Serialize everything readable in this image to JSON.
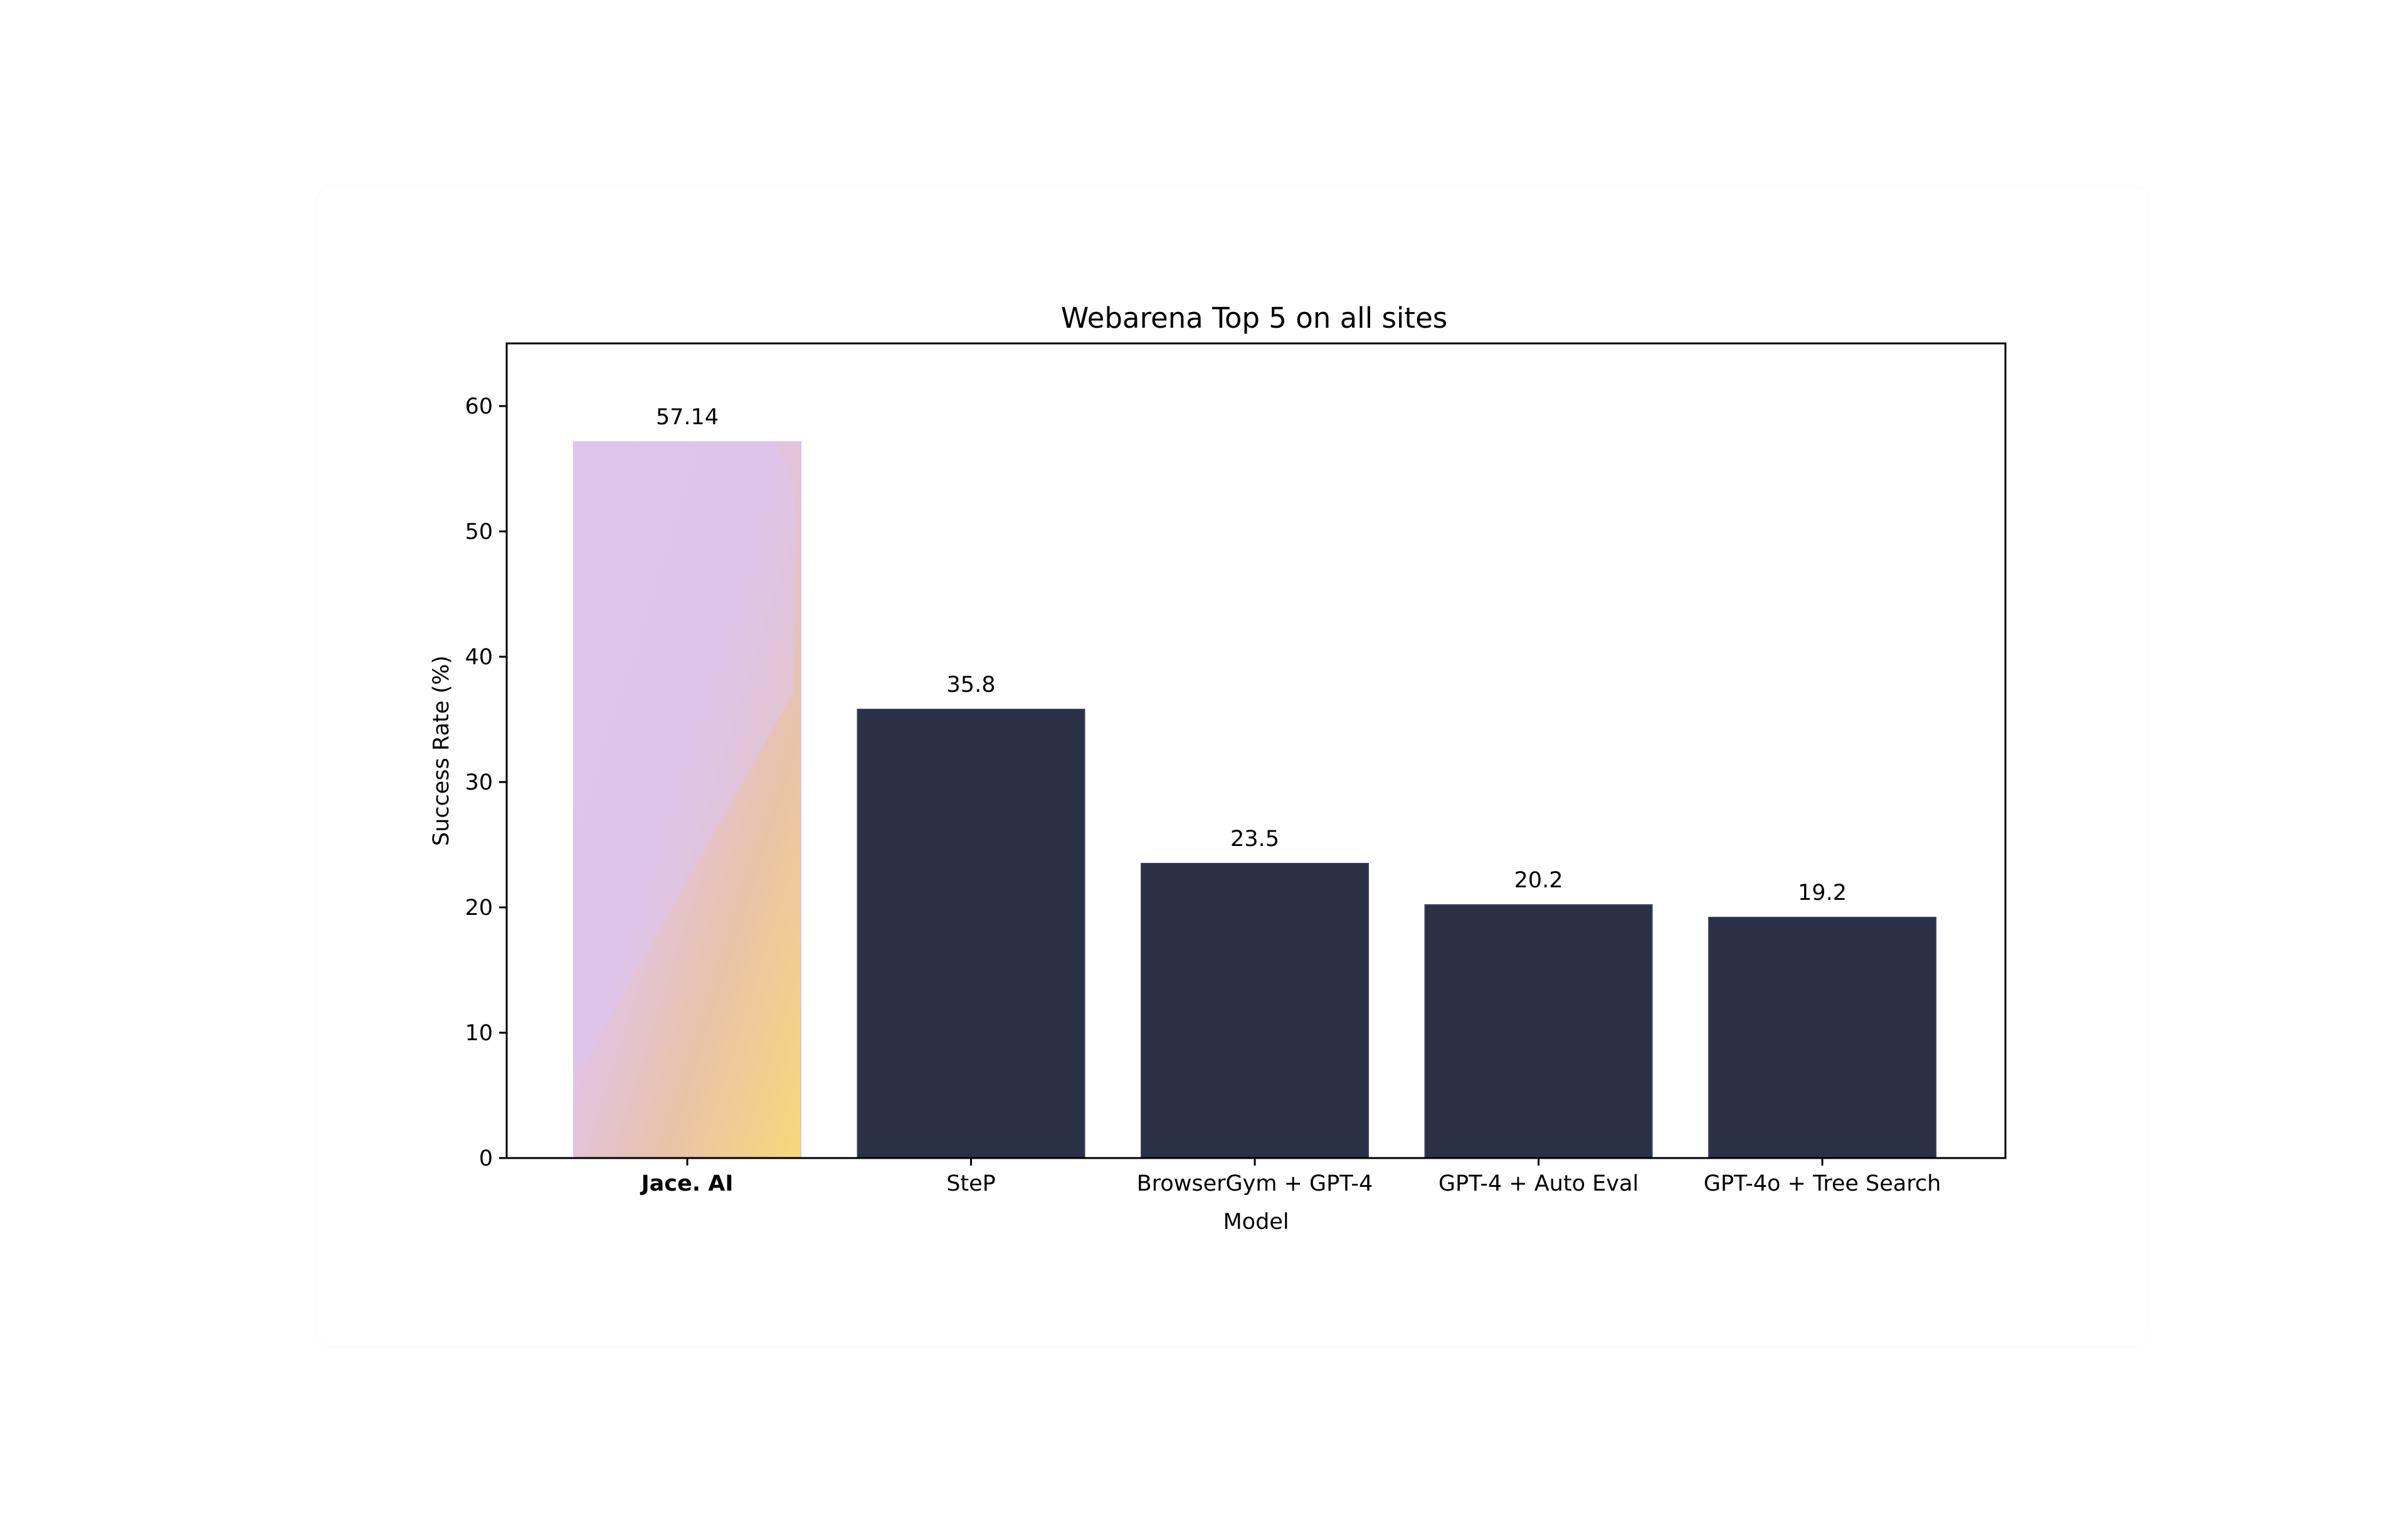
{
  "colors": {
    "bar": "#2a3045",
    "highlight_gradient": [
      "#f8d87a",
      "#e6bfd8",
      "#d7c0f2"
    ],
    "axis": "#000000",
    "background": "#ffffff"
  },
  "chart_data": {
    "type": "bar",
    "title": "Webarena Top 5 on all sites",
    "xlabel": "Model",
    "ylabel": "Success Rate (%)",
    "categories": [
      "Jace. AI",
      "SteP",
      "BrowserGym + GPT-4",
      "GPT-4 + Auto Eval",
      "GPT-4o + Tree Search"
    ],
    "values": [
      57.14,
      35.8,
      23.5,
      20.2,
      19.2
    ],
    "value_labels": [
      "57.14",
      "35.8",
      "23.5",
      "20.2",
      "19.2"
    ],
    "highlighted_category": "Jace. AI",
    "ylim": [
      0,
      65
    ],
    "yticks": [
      0,
      10,
      20,
      30,
      40,
      50,
      60
    ],
    "grid": false,
    "legend": "none"
  }
}
